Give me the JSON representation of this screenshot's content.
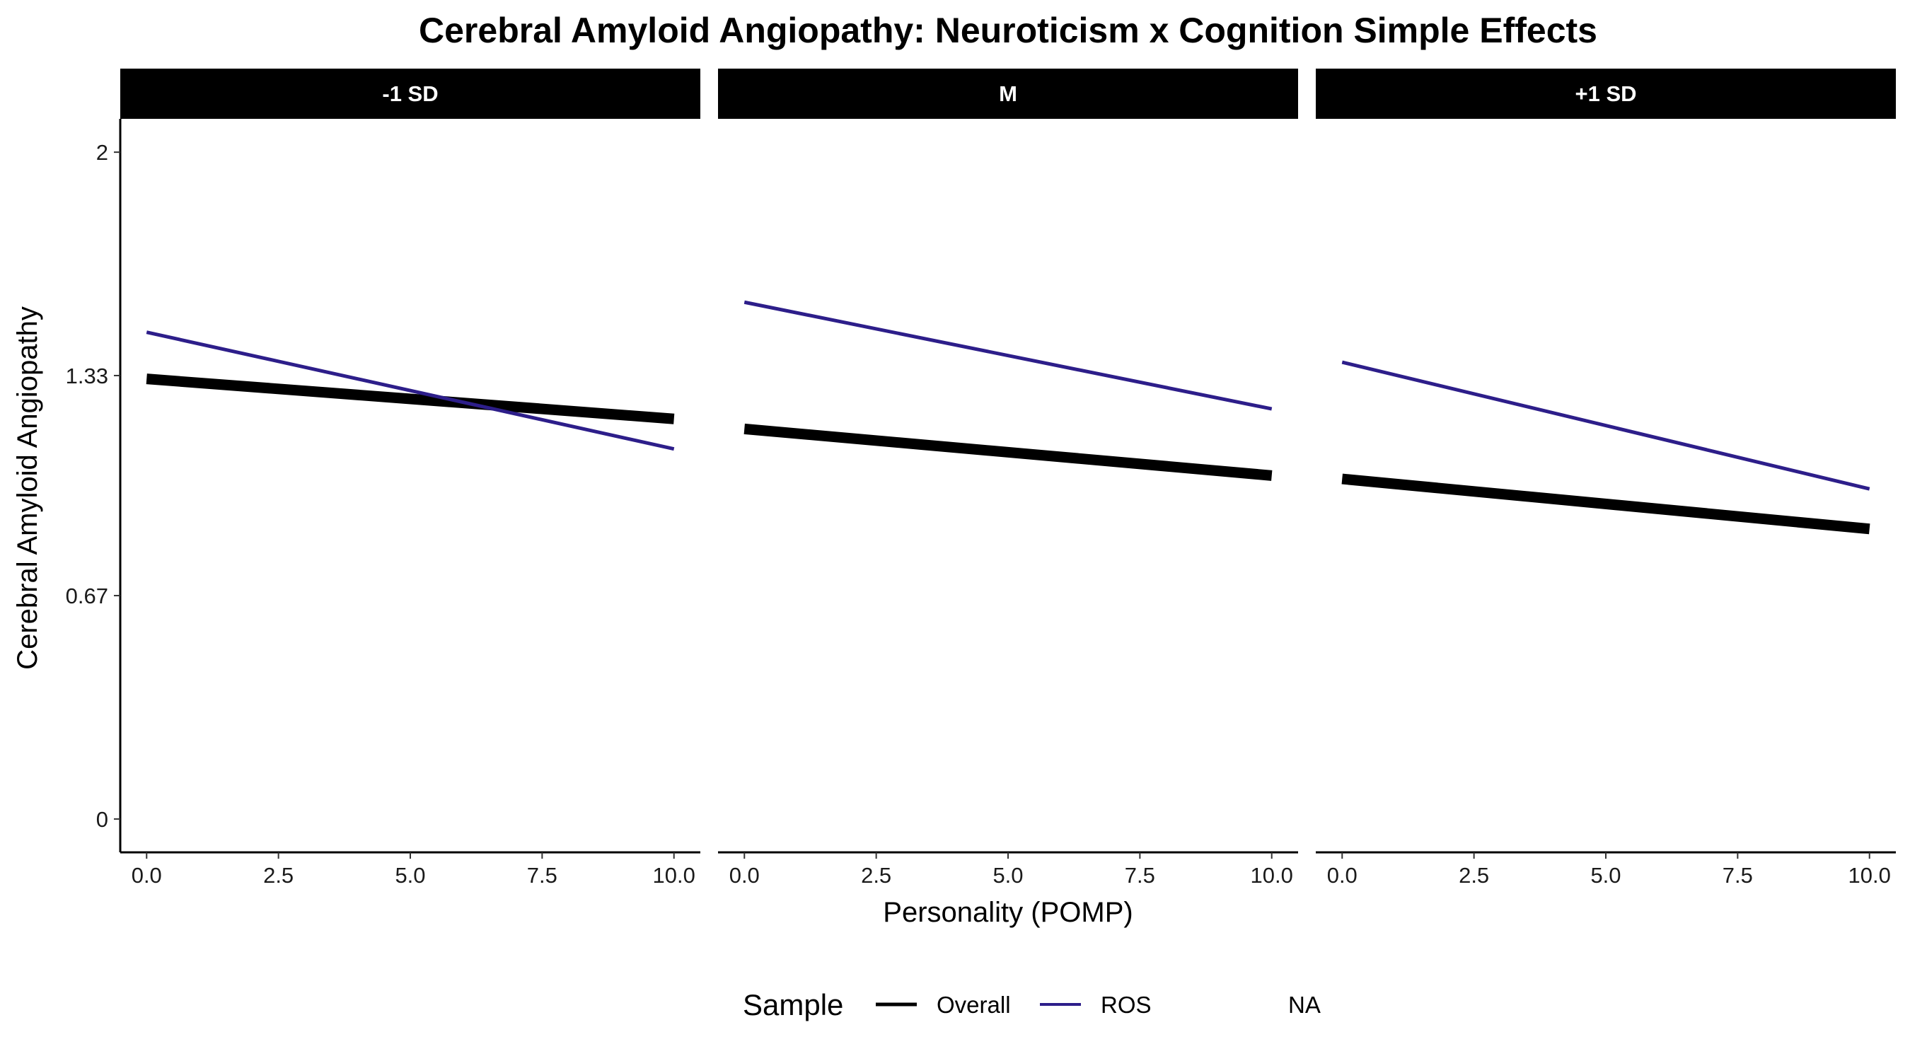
{
  "chart_data": {
    "type": "line",
    "title": "Cerebral Amyloid Angiopathy: Neuroticism x Cognition Simple Effects",
    "xlabel": "Personality (POMP)",
    "ylabel": "Cerebral Amyloid Angiopathy",
    "xlim": [
      -0.5,
      10.5
    ],
    "ylim": [
      -0.1,
      2.1
    ],
    "x_ticks": [
      0,
      2.5,
      5,
      7.5,
      10
    ],
    "x_tick_labels": [
      "0.0",
      "2.5",
      "5.0",
      "7.5",
      "10.0"
    ],
    "y_ticks": [
      0,
      0.67,
      1.33,
      2
    ],
    "y_tick_labels": [
      "0",
      "0.67",
      "1.33",
      "2"
    ],
    "grid": false,
    "legend": {
      "title": "Sample",
      "position": "bottom",
      "entries": [
        {
          "label": "Overall",
          "color": "#000000"
        },
        {
          "label": "ROS",
          "color": "#2d1e8a"
        },
        {
          "label": "NA",
          "color": null
        }
      ]
    },
    "panels": [
      {
        "label": "-1 SD",
        "series": [
          {
            "name": "Overall",
            "x": [
              0,
              10
            ],
            "y": [
              1.32,
              1.2
            ]
          },
          {
            "name": "ROS",
            "x": [
              0,
              10
            ],
            "y": [
              1.46,
              1.11
            ]
          }
        ]
      },
      {
        "label": "M",
        "series": [
          {
            "name": "Overall",
            "x": [
              0,
              10
            ],
            "y": [
              1.17,
              1.03
            ]
          },
          {
            "name": "ROS",
            "x": [
              0,
              10
            ],
            "y": [
              1.55,
              1.23
            ]
          }
        ]
      },
      {
        "label": "+1 SD",
        "series": [
          {
            "name": "Overall",
            "x": [
              0,
              10
            ],
            "y": [
              1.02,
              0.87
            ]
          },
          {
            "name": "ROS",
            "x": [
              0,
              10
            ],
            "y": [
              1.37,
              0.99
            ]
          }
        ]
      }
    ],
    "colors": {
      "Overall": "#000000",
      "ROS": "#2d1e8a"
    }
  }
}
